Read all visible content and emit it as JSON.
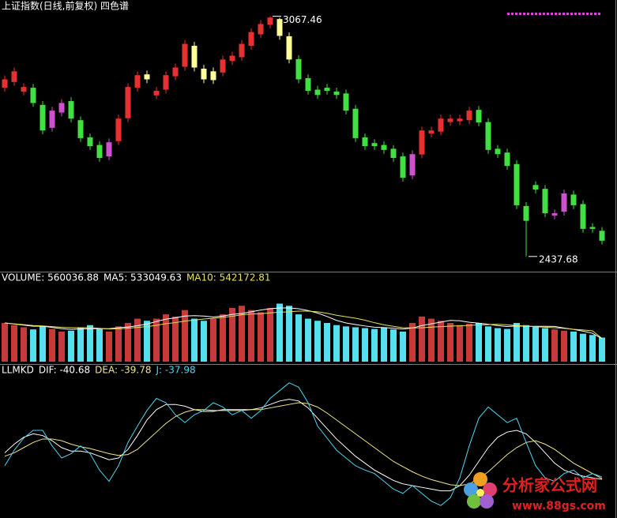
{
  "chart_data": [
    {
      "type": "candlestick",
      "title": "上证指数(日线,前复权) 四色谱",
      "high_label": "3067.46",
      "low_label": "2437.68",
      "ylim": [
        2400,
        3110
      ],
      "open": [
        2880,
        2895,
        2870,
        2880,
        2835,
        2775,
        2815,
        2845,
        2795,
        2750,
        2730,
        2700,
        2740,
        2800,
        2880,
        2915,
        2860,
        2875,
        2910,
        2935,
        2990,
        2930,
        2900,
        2920,
        2950,
        2960,
        2990,
        3020,
        3045,
        3060,
        3015,
        2955,
        2905,
        2875,
        2880,
        2870,
        2865,
        2825,
        2750,
        2735,
        2730,
        2720,
        2700,
        2650,
        2705,
        2760,
        2765,
        2790,
        2792,
        2795,
        2822,
        2790,
        2720,
        2710,
        2680,
        2570,
        2625,
        2615,
        2545,
        2555,
        2600,
        2575,
        2515,
        2505
      ],
      "high": [
        2912,
        2933,
        2892,
        2890,
        2845,
        2830,
        2850,
        2855,
        2805,
        2760,
        2740,
        2747,
        2809,
        2892,
        2923,
        2925,
        2882,
        2923,
        2943,
        3005,
        3000,
        2940,
        2933,
        2964,
        2974,
        3005,
        3036,
        3057,
        3067.46,
        3064,
        3025,
        2965,
        2915,
        2885,
        2890,
        2880,
        2875,
        2835,
        2760,
        2745,
        2740,
        2730,
        2710,
        2716,
        2778,
        2778,
        2809,
        2809,
        2809,
        2830,
        2832,
        2800,
        2730,
        2720,
        2690,
        2580,
        2635,
        2625,
        2561,
        2613,
        2610,
        2585,
        2525,
        2515
      ],
      "low": [
        2870,
        2885,
        2860,
        2830,
        2758,
        2765,
        2805,
        2789,
        2738,
        2717,
        2686,
        2690,
        2730,
        2790,
        2870,
        2892,
        2850,
        2865,
        2900,
        2925,
        2923,
        2892,
        2890,
        2910,
        2940,
        2950,
        2980,
        3010,
        3035,
        3006,
        2944,
        2892,
        2862,
        2851,
        2862,
        2851,
        2810,
        2738,
        2717,
        2717,
        2707,
        2686,
        2634,
        2640,
        2695,
        2750,
        2755,
        2780,
        2782,
        2785,
        2779,
        2707,
        2696,
        2665,
        2562,
        2437.68,
        2603,
        2541,
        2535,
        2545,
        2562,
        2500,
        2500,
        2469
      ],
      "close": [
        2902,
        2923,
        2882,
        2840,
        2768,
        2820,
        2840,
        2799,
        2748,
        2727,
        2696,
        2737,
        2799,
        2882,
        2913,
        2902,
        2872,
        2913,
        2933,
        2995,
        2933,
        2902,
        2923,
        2954,
        2964,
        2995,
        3026,
        3047,
        3064,
        3016,
        2954,
        2902,
        2872,
        2861,
        2872,
        2861,
        2820,
        2748,
        2727,
        2727,
        2717,
        2696,
        2644,
        2706,
        2768,
        2768,
        2799,
        2799,
        2799,
        2820,
        2789,
        2717,
        2706,
        2675,
        2572,
        2531,
        2613,
        2551,
        2551,
        2603,
        2572,
        2510,
        2510,
        2479
      ],
      "colors": [
        "#e83030",
        "#e83030",
        "#e83030",
        "#40e040",
        "#40e040",
        "#d050d0",
        "#d050d0",
        "#40e040",
        "#40e040",
        "#40e040",
        "#40e040",
        "#d050d0",
        "#e83030",
        "#e83030",
        "#e83030",
        "#ffff99",
        "#e83030",
        "#e83030",
        "#e83030",
        "#e83030",
        "#ffff99",
        "#ffff99",
        "#ffff99",
        "#e83030",
        "#e83030",
        "#e83030",
        "#e83030",
        "#e83030",
        "#e83030",
        "#ffff99",
        "#ffff99",
        "#40e040",
        "#40e040",
        "#40e040",
        "#40e040",
        "#40e040",
        "#40e040",
        "#40e040",
        "#40e040",
        "#40e040",
        "#40e040",
        "#40e040",
        "#40e040",
        "#d050d0",
        "#e83030",
        "#e83030",
        "#e83030",
        "#e83030",
        "#e83030",
        "#e83030",
        "#40e040",
        "#40e040",
        "#40e040",
        "#40e040",
        "#40e040",
        "#40e040",
        "#40e040",
        "#40e040",
        "#d050d0",
        "#d050d0",
        "#40e040",
        "#40e040",
        "#40e040",
        "#40e040"
      ]
    },
    {
      "type": "volume",
      "label": "VOLUME: 560036.88",
      "ylim": [
        0,
        1800000
      ],
      "up_color": "#c83a3a",
      "down_color": "#54e0ee",
      "values": [
        900000,
        850000,
        800000,
        750000,
        820000,
        760000,
        700000,
        720000,
        800000,
        850000,
        760000,
        700000,
        820000,
        900000,
        1000000,
        950000,
        1000000,
        1100000,
        1050000,
        1200000,
        1000000,
        950000,
        1000000,
        1100000,
        1250000,
        1300000,
        1200000,
        1150000,
        1250000,
        1350000,
        1300000,
        1100000,
        1000000,
        950000,
        900000,
        850000,
        820000,
        800000,
        780000,
        760000,
        800000,
        750000,
        700000,
        900000,
        1050000,
        1000000,
        950000,
        900000,
        850000,
        880000,
        900000,
        820000,
        780000,
        760000,
        900000,
        850000,
        820000,
        780000,
        750000,
        720000,
        700000,
        650000,
        620000,
        560036.88
      ],
      "series": [
        {
          "label": "MA5: 533049.63",
          "color": "#ffffff",
          "values": [
            900000,
            875000,
            850000,
            825000,
            824000,
            796000,
            766000,
            750000,
            760000,
            766000,
            766000,
            766000,
            790000,
            806000,
            836000,
            874000,
            934000,
            990000,
            1020000,
            1060000,
            1070000,
            1060000,
            1040000,
            1060000,
            1100000,
            1120000,
            1160000,
            1200000,
            1230000,
            1250000,
            1250000,
            1230000,
            1190000,
            1130000,
            1050000,
            960000,
            900000,
            864000,
            830000,
            802000,
            792000,
            778000,
            758000,
            782000,
            840000,
            880000,
            920000,
            960000,
            950000,
            916000,
            896000,
            870000,
            838000,
            818000,
            832000,
            822000,
            822000,
            822000,
            820000,
            784000,
            750000,
            710000,
            660000,
            533049.63
          ]
        },
        {
          "label": "MA10: 542172.81",
          "color": "#e8e060",
          "values": [
            900000,
            880000,
            860000,
            840000,
            830000,
            815000,
            800000,
            790000,
            790000,
            790000,
            776000,
            761000,
            763000,
            778000,
            796000,
            815000,
            845000,
            883000,
            908000,
            943000,
            967000,
            992000,
            1010000,
            1030000,
            1055000,
            1090000,
            1110000,
            1115000,
            1135000,
            1150000,
            1160000,
            1175000,
            1175000,
            1160000,
            1125000,
            1080000,
            1045000,
            1010000,
            965000,
            906000,
            856000,
            821000,
            790000,
            785000,
            788000,
            803000,
            816000,
            826000,
            833000,
            845000,
            855000,
            862000,
            870000,
            856000,
            841000,
            826000,
            813000,
            801000,
            790000,
            774000,
            754000,
            737000,
            716000,
            542172.81
          ]
        }
      ]
    },
    {
      "type": "line",
      "label": "LLMKD",
      "ylim": [
        -80,
        80
      ],
      "series": [
        {
          "label": "DIF: -40.68",
          "color": "#ffffff",
          "values": [
            -10,
            0,
            8,
            12,
            10,
            4,
            -4,
            -8,
            -8,
            -10,
            -14,
            -18,
            -16,
            -6,
            10,
            28,
            40,
            46,
            46,
            44,
            40,
            38,
            38,
            40,
            40,
            40,
            40,
            42,
            46,
            50,
            52,
            50,
            42,
            30,
            18,
            6,
            -4,
            -14,
            -22,
            -30,
            -36,
            -42,
            -46,
            -48,
            -50,
            -52,
            -54,
            -54,
            -48,
            -36,
            -20,
            -4,
            8,
            14,
            16,
            12,
            2,
            -10,
            -22,
            -30,
            -34,
            -37,
            -39,
            -40.68
          ]
        },
        {
          "label": "DEA: -39.78",
          "color": "#f0e68c",
          "values": [
            -14,
            -10,
            -4,
            2,
            6,
            6,
            4,
            0,
            -3,
            -5,
            -8,
            -11,
            -13,
            -12,
            -6,
            4,
            14,
            24,
            32,
            37,
            40,
            40,
            39,
            39,
            39,
            39,
            40,
            40,
            42,
            44,
            46,
            48,
            47,
            43,
            36,
            28,
            20,
            12,
            4,
            -4,
            -12,
            -20,
            -26,
            -32,
            -37,
            -41,
            -44,
            -47,
            -48,
            -46,
            -40,
            -32,
            -22,
            -12,
            -4,
            2,
            4,
            0,
            -6,
            -14,
            -22,
            -28,
            -34,
            -39.78
          ]
        },
        {
          "label": "J: -37.98",
          "color": "#4fd5f0",
          "values": [
            -25,
            -7,
            7,
            16,
            16,
            -2,
            -16,
            -11,
            -2,
            -11,
            -30,
            -43,
            -25,
            2,
            21,
            39,
            53,
            48,
            34,
            25,
            34,
            39,
            48,
            43,
            34,
            39,
            30,
            39,
            53,
            62,
            71,
            66,
            48,
            21,
            7,
            -7,
            -16,
            -25,
            -30,
            -34,
            -43,
            -52,
            -57,
            -48,
            -57,
            -66,
            -71,
            -62,
            -39,
            -2,
            30,
            43,
            34,
            25,
            30,
            2,
            -25,
            -39,
            -43,
            -34,
            -30,
            -39,
            -34,
            -37.98
          ]
        }
      ]
    }
  ],
  "watermark": {
    "title": "分析家公式网",
    "url": "www.88gs.com"
  }
}
